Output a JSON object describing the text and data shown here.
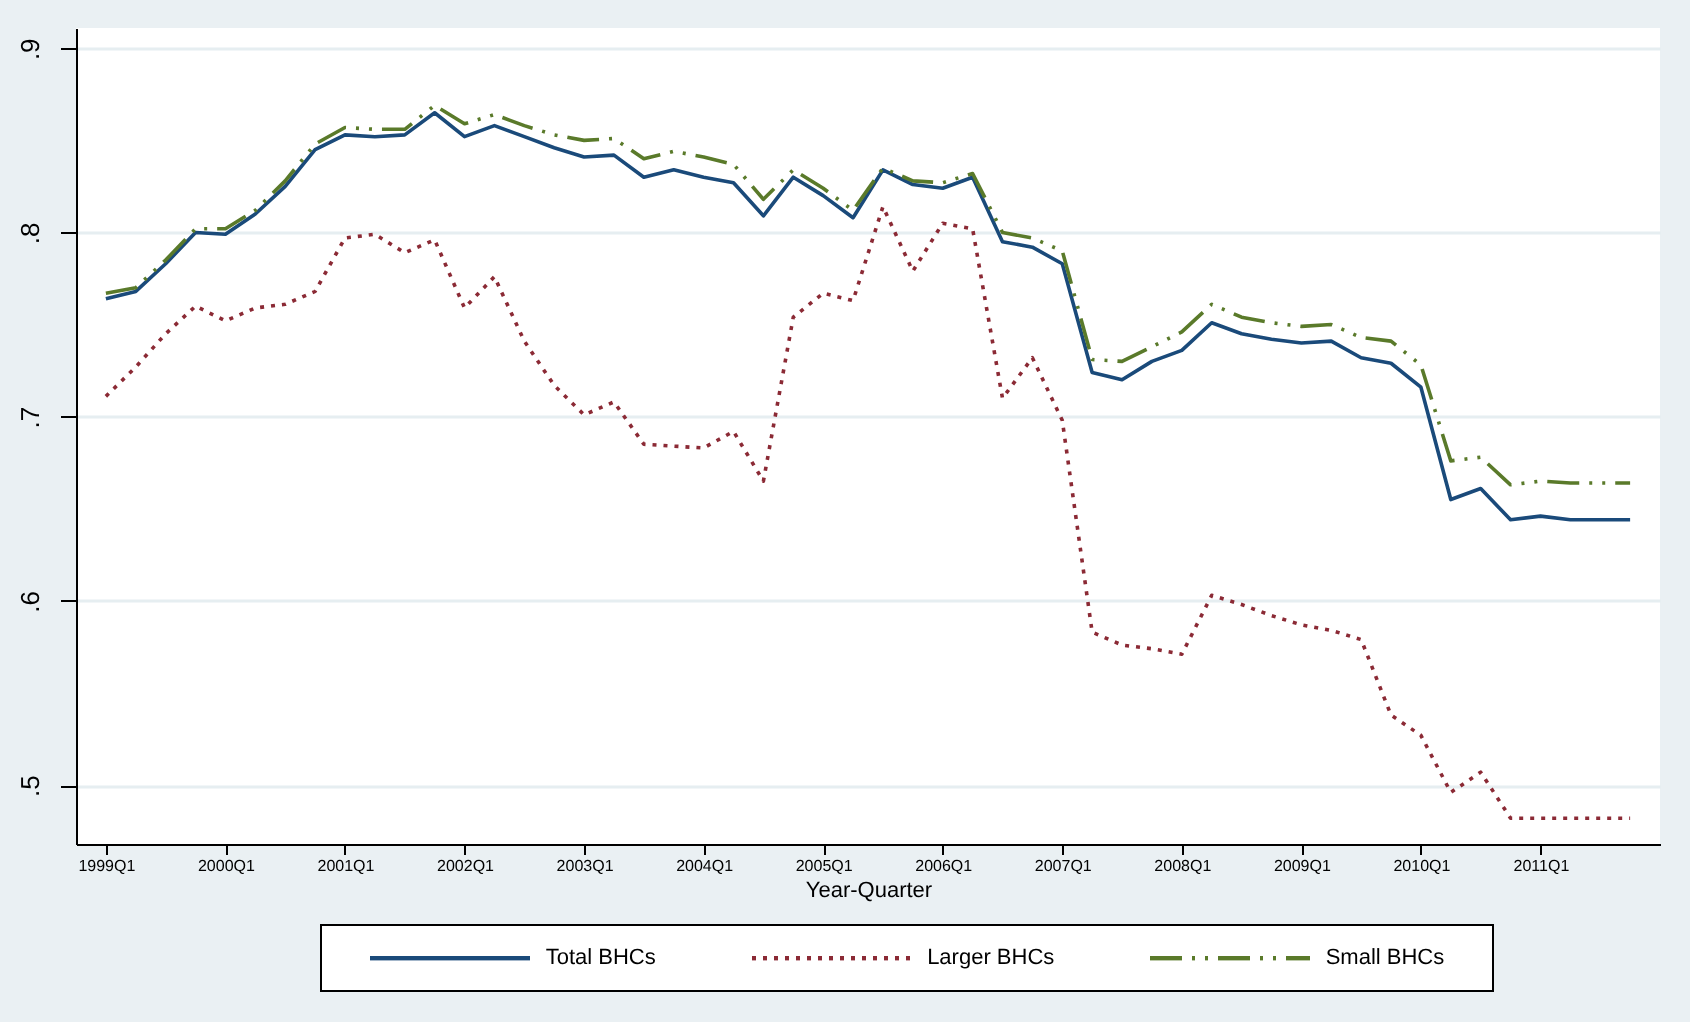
{
  "chart_data": {
    "type": "line",
    "xlabel": "Year-Quarter",
    "categories": [
      "1999Q1",
      null,
      null,
      null,
      "2000Q1",
      null,
      null,
      null,
      "2001Q1",
      null,
      null,
      null,
      "2002Q1",
      null,
      null,
      null,
      "2003Q1",
      null,
      null,
      null,
      "2004Q1",
      null,
      null,
      null,
      "2005Q1",
      null,
      null,
      null,
      "2006Q1",
      null,
      null,
      null,
      "2007Q1",
      null,
      null,
      null,
      "2008Q1",
      null,
      null,
      null,
      "2009Q1",
      null,
      null,
      null,
      "2010Q1",
      null,
      null,
      null,
      "2011Q1",
      null,
      null,
      null
    ],
    "series": [
      {
        "name": "Total BHCs",
        "color": "#1a4a7a",
        "line_style": "solid",
        "values": [
          0.764,
          0.768,
          0.783,
          0.8,
          0.799,
          0.81,
          0.825,
          0.845,
          0.853,
          0.852,
          0.853,
          0.865,
          0.852,
          0.858,
          0.852,
          0.846,
          0.841,
          0.842,
          0.83,
          0.834,
          0.83,
          0.827,
          0.809,
          0.83,
          0.82,
          0.808,
          0.834,
          0.826,
          0.824,
          0.83,
          0.795,
          0.792,
          0.783,
          0.724,
          0.72,
          0.73,
          0.736,
          0.751,
          0.745,
          0.742,
          0.74,
          0.741,
          0.732,
          0.729,
          0.716,
          0.655,
          0.661,
          0.644,
          0.646,
          0.644,
          0.644,
          0.644
        ]
      },
      {
        "name": "Larger BHCs",
        "color": "#8b2a35",
        "line_style": "dotted",
        "values": [
          0.711,
          0.727,
          0.745,
          0.76,
          0.752,
          0.759,
          0.761,
          0.768,
          0.797,
          0.799,
          0.789,
          0.796,
          0.759,
          0.776,
          0.741,
          0.717,
          0.701,
          0.708,
          0.685,
          0.684,
          0.683,
          0.692,
          0.665,
          0.754,
          0.767,
          0.763,
          0.814,
          0.779,
          0.805,
          0.802,
          0.71,
          0.732,
          0.698,
          0.583,
          0.576,
          0.574,
          0.571,
          0.603,
          0.598,
          0.592,
          0.587,
          0.584,
          0.579,
          0.538,
          0.527,
          0.496,
          0.507,
          0.482,
          0.482,
          0.482,
          0.482,
          0.482
        ]
      },
      {
        "name": "Small BHCs",
        "color": "#5a7a2a",
        "line_style": "dashed",
        "values": [
          0.767,
          0.77,
          0.785,
          0.802,
          0.802,
          0.812,
          0.828,
          0.848,
          0.857,
          0.856,
          0.856,
          0.869,
          0.859,
          0.864,
          0.858,
          0.853,
          0.85,
          0.851,
          0.84,
          0.844,
          0.841,
          0.837,
          0.818,
          0.834,
          0.824,
          0.812,
          0.835,
          0.828,
          0.827,
          0.832,
          0.8,
          0.797,
          0.79,
          0.731,
          0.73,
          0.738,
          0.746,
          0.761,
          0.754,
          0.751,
          0.749,
          0.75,
          0.743,
          0.741,
          0.728,
          0.676,
          0.678,
          0.663,
          0.665,
          0.664,
          0.664,
          0.664
        ]
      }
    ],
    "ylim": [
      0.468,
      0.911
    ],
    "yticks": [
      {
        "value": 0.5,
        "label": ".5"
      },
      {
        "value": 0.6,
        "label": ".6"
      },
      {
        "value": 0.7,
        "label": ".7"
      },
      {
        "value": 0.8,
        "label": ".8"
      },
      {
        "value": 0.9,
        "label": ".9"
      }
    ],
    "grid": "y",
    "legend": "bottom"
  }
}
